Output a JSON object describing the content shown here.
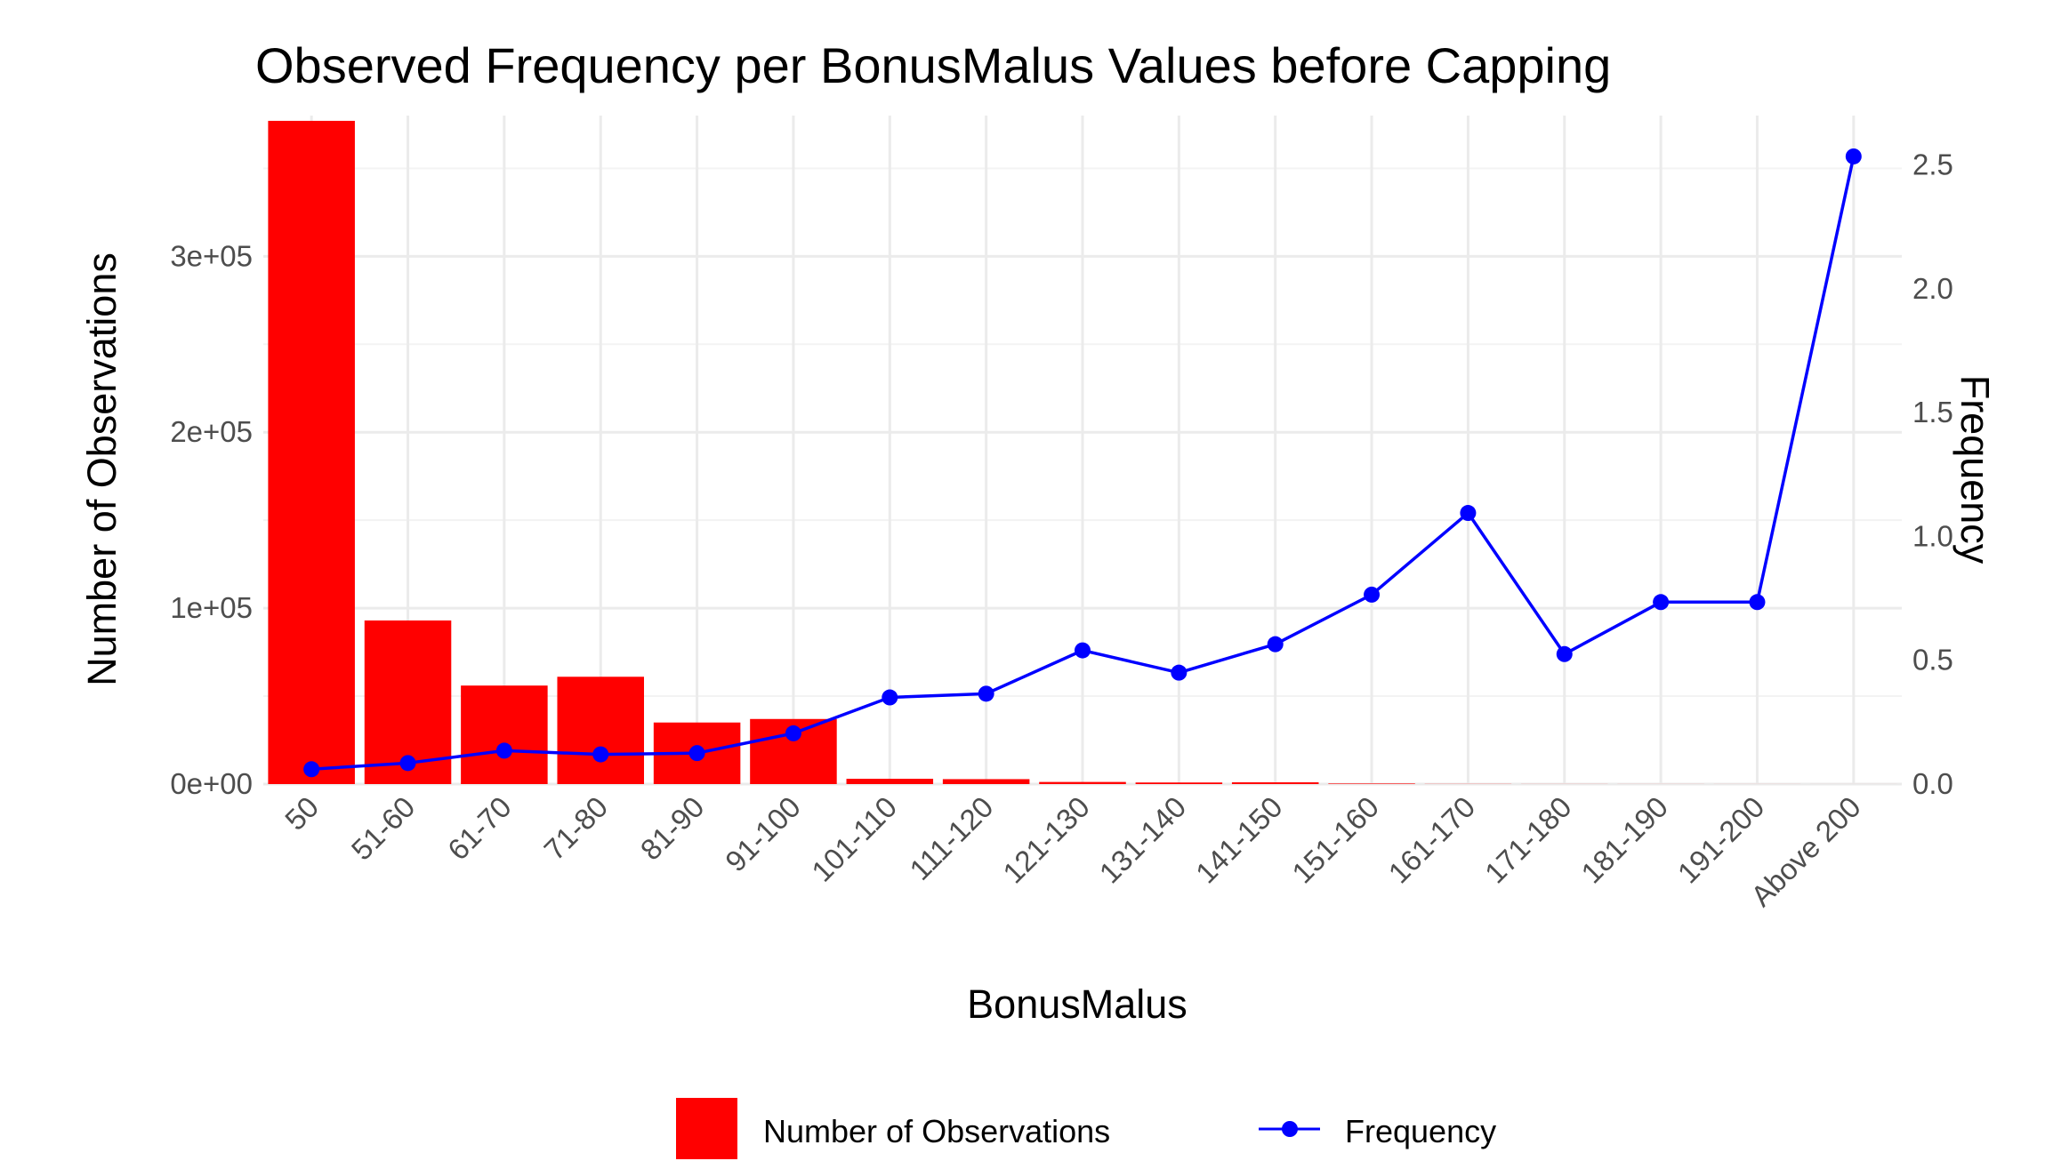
{
  "chart_data": {
    "type": "bar+line",
    "title": "Observed Frequency per BonusMalus Values before Capping",
    "xlabel": "BonusMalus",
    "ylabel_left": "Number of Observations",
    "ylabel_right": "Frequency",
    "categories": [
      "50",
      "51-60",
      "61-70",
      "71-80",
      "81-90",
      "91-100",
      "101-110",
      "111-120",
      "121-130",
      "131-140",
      "141-150",
      "151-160",
      "161-170",
      "171-180",
      "181-190",
      "191-200",
      "Above 200"
    ],
    "left_axis": {
      "min": 0,
      "max": 380000,
      "ticks": [
        0,
        100000,
        200000,
        300000
      ],
      "tick_labels": [
        "0e+00",
        "1e+05",
        "2e+05",
        "3e+05"
      ]
    },
    "right_axis": {
      "min": 0,
      "max": 2.7,
      "ticks": [
        0,
        0.5,
        1.0,
        1.5,
        2.0,
        2.5
      ],
      "tick_labels": [
        "0.0",
        "0.5",
        "1.0",
        "1.5",
        "2.0",
        "2.5"
      ]
    },
    "series": [
      {
        "name": "Number of Observations",
        "kind": "bar",
        "axis": "left",
        "color": "#ff0000",
        "values": [
          377000,
          93000,
          56000,
          61000,
          35000,
          37000,
          3000,
          2800,
          1200,
          900,
          1000,
          300,
          80,
          40,
          30,
          20,
          10
        ]
      },
      {
        "name": "Frequency",
        "kind": "line",
        "axis": "right",
        "color": "#0000ff",
        "values": [
          0.06,
          0.085,
          0.135,
          0.12,
          0.125,
          0.205,
          0.35,
          0.365,
          0.54,
          0.45,
          0.565,
          0.765,
          1.095,
          0.525,
          0.735,
          0.735,
          2.535
        ]
      }
    ],
    "legend": {
      "position": "bottom",
      "items": [
        {
          "label": "Number of Observations",
          "kind": "bar",
          "color": "#ff0000"
        },
        {
          "label": "Frequency",
          "kind": "line",
          "color": "#0000ff"
        }
      ]
    }
  }
}
